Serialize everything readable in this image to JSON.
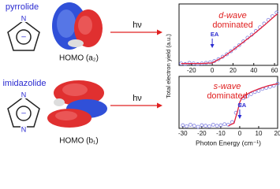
{
  "molecules": [
    {
      "name": "pyrrolide",
      "atoms": [
        "N"
      ],
      "charge": "–",
      "orbital": "HOMO (a₂)"
    },
    {
      "name": "imidazolide",
      "atoms": [
        "N",
        "N"
      ],
      "charge": "–",
      "orbital": "HOMO (b₁)"
    }
  ],
  "arrow_label": "hν",
  "y_label": "Total electron yield (a.u.)",
  "chart_data": [
    {
      "type": "scatter",
      "annotation": [
        "d-wave",
        "dominated"
      ],
      "marker": "EA",
      "marker_x": 0,
      "xlim": [
        -32,
        63
      ],
      "xticks": [
        -20,
        0,
        20,
        40,
        60
      ],
      "ylim": [
        0,
        1
      ],
      "series": [
        {
          "color": "#8080e0",
          "x": [
            -30,
            -26,
            -22,
            -18,
            -14,
            -10,
            -6,
            -2,
            2,
            6,
            10,
            14,
            18,
            22,
            26,
            30,
            34,
            38,
            42,
            46,
            50,
            54,
            58,
            62
          ],
          "values": [
            0.03,
            0.02,
            0.04,
            0.03,
            0.02,
            0.03,
            0.04,
            0.05,
            0.07,
            0.1,
            0.14,
            0.18,
            0.23,
            0.28,
            0.33,
            0.39,
            0.45,
            0.5,
            0.56,
            0.62,
            0.68,
            0.74,
            0.8,
            0.86
          ]
        },
        {
          "color": "#e0203c",
          "line": true,
          "x": [
            -30,
            -10,
            0,
            10,
            20,
            30,
            40,
            50,
            60,
            63
          ],
          "values": [
            0.03,
            0.03,
            0.04,
            0.13,
            0.25,
            0.38,
            0.51,
            0.65,
            0.8,
            0.84
          ]
        }
      ]
    },
    {
      "type": "scatter",
      "annotation": [
        "s-wave",
        "dominated"
      ],
      "marker": "EA",
      "marker_x": 0,
      "x_label": "Photon Energy (cm⁻¹)",
      "xlim": [
        -32,
        20
      ],
      "xticks": [
        -30,
        -20,
        -10,
        0,
        10,
        20
      ],
      "ylim": [
        0,
        1
      ],
      "series": [
        {
          "color": "#8080e0",
          "x": [
            -30,
            -28,
            -26,
            -24,
            -22,
            -20,
            -18,
            -16,
            -14,
            -12,
            -10,
            -8,
            -6,
            -4,
            -2,
            0,
            2,
            4,
            6,
            8,
            10,
            12,
            14,
            16,
            18,
            20
          ],
          "values": [
            0.06,
            0.04,
            0.07,
            0.05,
            0.03,
            0.06,
            0.05,
            0.04,
            0.07,
            0.05,
            0.06,
            0.08,
            0.07,
            0.12,
            0.3,
            0.45,
            0.58,
            0.62,
            0.66,
            0.7,
            0.72,
            0.76,
            0.78,
            0.8,
            0.82,
            0.86
          ]
        },
        {
          "color": "#e0203c",
          "line": true,
          "x": [
            -6,
            -3,
            -1,
            0,
            1,
            3,
            6,
            10,
            15,
            20
          ],
          "values": [
            0.05,
            0.1,
            0.35,
            0.5,
            0.58,
            0.64,
            0.7,
            0.76,
            0.82,
            0.86
          ]
        }
      ]
    }
  ]
}
